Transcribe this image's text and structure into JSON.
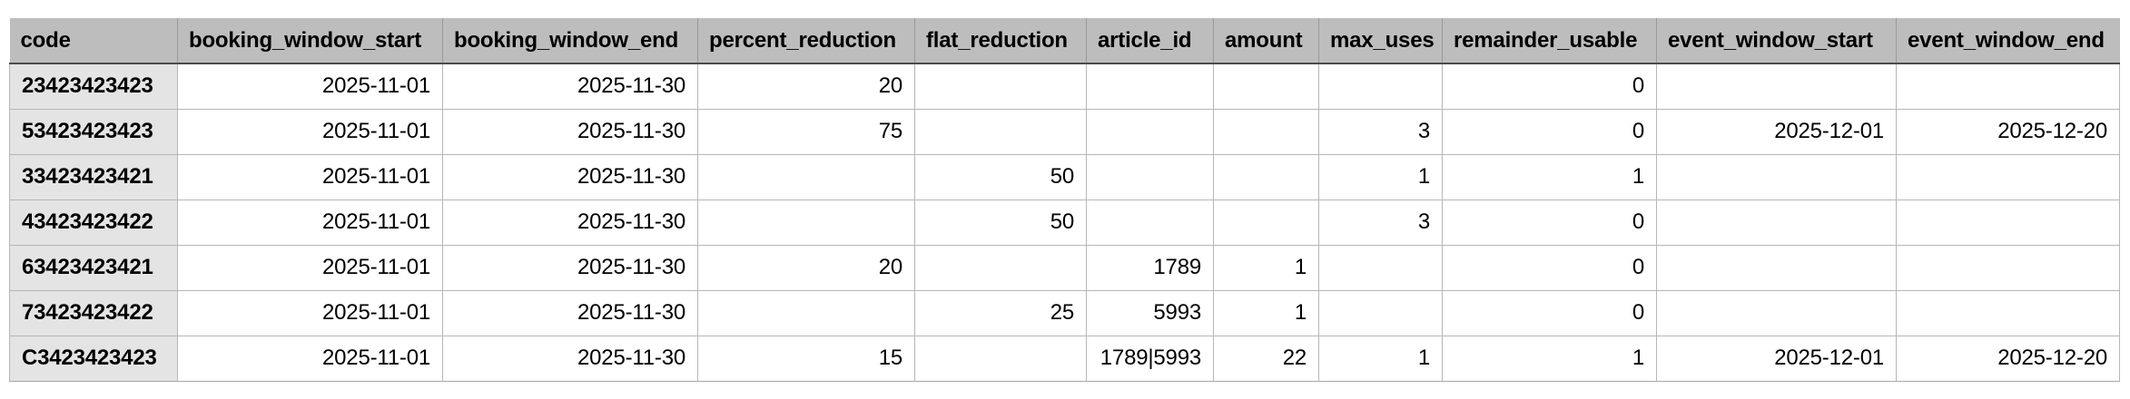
{
  "table": {
    "columns": [
      "code",
      "booking_window_start",
      "booking_window_end",
      "percent_reduction",
      "flat_reduction",
      "article_id",
      "amount",
      "max_uses",
      "remainder_usable",
      "event_window_start",
      "event_window_end"
    ],
    "rows": [
      [
        "23423423423",
        "2025-11-01",
        "2025-11-30",
        "20",
        "",
        "",
        "",
        "",
        "0",
        "",
        ""
      ],
      [
        "53423423423",
        "2025-11-01",
        "2025-11-30",
        "75",
        "",
        "",
        "",
        "3",
        "0",
        "2025-12-01",
        "2025-12-20"
      ],
      [
        "33423423421",
        "2025-11-01",
        "2025-11-30",
        "",
        "50",
        "",
        "",
        "1",
        "1",
        "",
        ""
      ],
      [
        "43423423422",
        "2025-11-01",
        "2025-11-30",
        "",
        "50",
        "",
        "",
        "3",
        "0",
        "",
        ""
      ],
      [
        "63423423421",
        "2025-11-01",
        "2025-11-30",
        "20",
        "",
        "1789",
        "1",
        "",
        "0",
        "",
        ""
      ],
      [
        "73423423422",
        "2025-11-01",
        "2025-11-30",
        "",
        "25",
        "5993",
        "1",
        "",
        "0",
        "",
        ""
      ],
      [
        "C3423423423",
        "2025-11-01",
        "2025-11-30",
        "15",
        "",
        "1789|5993",
        "22",
        "1",
        "1",
        "2025-12-01",
        "2025-12-20"
      ]
    ]
  },
  "colors": {
    "header_bg": "#bdbdbd",
    "code_column_bg": "#e4e4e4",
    "header_divider": "#4a4a4a",
    "header_separator": "#9a9a9a",
    "grid_line": "#b6b6b6",
    "text": "#000000",
    "background": "#ffffff"
  }
}
